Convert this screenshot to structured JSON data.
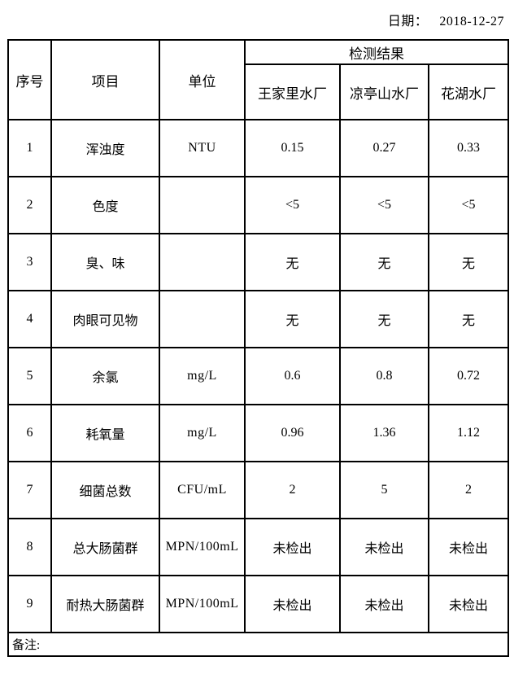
{
  "page": {
    "date_label": "日期：",
    "date_value": "2018-12-27"
  },
  "table": {
    "header": {
      "col_no": "序号",
      "col_item": "项目",
      "col_unit": "单位",
      "result_group": "检测结果",
      "plants": [
        "王家里水厂",
        "凉亭山水厂",
        "花湖水厂"
      ]
    },
    "rows": [
      {
        "no": "1",
        "item": "浑浊度",
        "unit": "NTU",
        "values": [
          "0.15",
          "0.27",
          "0.33"
        ]
      },
      {
        "no": "2",
        "item": "色度",
        "unit": "",
        "values": [
          "<5",
          "<5",
          "<5"
        ]
      },
      {
        "no": "3",
        "item": "臭、味",
        "unit": "",
        "values": [
          "无",
          "无",
          "无"
        ]
      },
      {
        "no": "4",
        "item": "肉眼可见物",
        "unit": "",
        "values": [
          "无",
          "无",
          "无"
        ]
      },
      {
        "no": "5",
        "item": "余氯",
        "unit": "mg/L",
        "values": [
          "0.6",
          "0.8",
          "0.72"
        ]
      },
      {
        "no": "6",
        "item": "耗氧量",
        "unit": "mg/L",
        "values": [
          "0.96",
          "1.36",
          "1.12"
        ]
      },
      {
        "no": "7",
        "item": "细菌总数",
        "unit": "CFU/mL",
        "values": [
          "2",
          "5",
          "2"
        ]
      },
      {
        "no": "8",
        "item": "总大肠菌群",
        "unit": "MPN/100mL",
        "values": [
          "未检出",
          "未检出",
          "未检出"
        ]
      },
      {
        "no": "9",
        "item": "耐热大肠菌群",
        "unit": "MPN/100mL",
        "values": [
          "未检出",
          "未检出",
          "未检出"
        ]
      }
    ],
    "remarks_label": "备注:"
  },
  "colors": {
    "border": "#000000",
    "text": "#000000",
    "background": "#ffffff"
  }
}
